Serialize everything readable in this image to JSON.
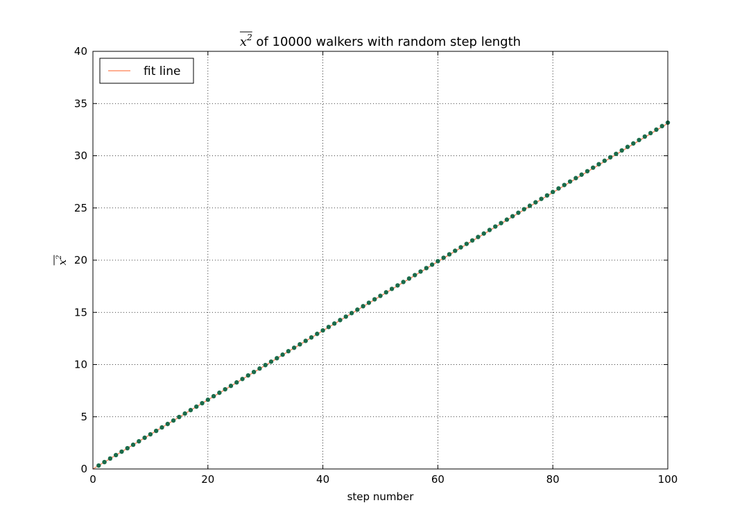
{
  "chart_data": {
    "type": "scatter",
    "title": {
      "math_base": "x",
      "math_exp": "2",
      "overline": true,
      "text": " of 10000 walkers with random step length"
    },
    "xlabel": "step number",
    "ylabel": {
      "math_base": "x",
      "math_exp": "2",
      "overline": true
    },
    "xlim": [
      0,
      100
    ],
    "ylim": [
      0,
      40
    ],
    "xticks": [
      0,
      20,
      40,
      60,
      80,
      100
    ],
    "yticks": [
      0,
      5,
      10,
      15,
      20,
      25,
      30,
      35,
      40
    ],
    "xtick_labels": [
      "0",
      "20",
      "40",
      "60",
      "80",
      "100"
    ],
    "ytick_labels": [
      "0",
      "5",
      "10",
      "15",
      "20",
      "25",
      "30",
      "35",
      "40"
    ],
    "grid": true,
    "legend_position": "top-left",
    "series": [
      {
        "name": "",
        "kind": "scatter",
        "color": "#1a6b4a",
        "x": [
          1,
          2,
          3,
          4,
          5,
          6,
          7,
          8,
          9,
          10,
          11,
          12,
          13,
          14,
          15,
          16,
          17,
          18,
          19,
          20,
          21,
          22,
          23,
          24,
          25,
          26,
          27,
          28,
          29,
          30,
          31,
          32,
          33,
          34,
          35,
          36,
          37,
          38,
          39,
          40,
          41,
          42,
          43,
          44,
          45,
          46,
          47,
          48,
          49,
          50,
          51,
          52,
          53,
          54,
          55,
          56,
          57,
          58,
          59,
          60,
          61,
          62,
          63,
          64,
          65,
          66,
          67,
          68,
          69,
          70,
          71,
          72,
          73,
          74,
          75,
          76,
          77,
          78,
          79,
          80,
          81,
          82,
          83,
          84,
          85,
          86,
          87,
          88,
          89,
          90,
          91,
          92,
          93,
          94,
          95,
          96,
          97,
          98,
          99,
          100
        ],
        "y": [
          0.33,
          0.66,
          1.0,
          1.33,
          1.66,
          1.99,
          2.32,
          2.65,
          2.99,
          3.32,
          3.65,
          3.98,
          4.31,
          4.64,
          4.98,
          5.31,
          5.64,
          5.97,
          6.3,
          6.63,
          6.97,
          7.3,
          7.63,
          7.96,
          8.29,
          8.62,
          8.96,
          9.29,
          9.62,
          9.95,
          10.28,
          10.61,
          10.95,
          11.28,
          11.61,
          11.94,
          12.27,
          12.6,
          12.94,
          13.27,
          13.6,
          13.93,
          14.26,
          14.59,
          14.93,
          15.26,
          15.59,
          15.92,
          16.25,
          16.58,
          16.92,
          17.25,
          17.58,
          17.91,
          18.24,
          18.57,
          18.91,
          19.24,
          19.57,
          19.9,
          20.23,
          20.56,
          20.9,
          21.23,
          21.56,
          21.89,
          22.22,
          22.55,
          22.89,
          23.22,
          23.55,
          23.88,
          24.21,
          24.54,
          24.88,
          25.21,
          25.54,
          25.87,
          26.2,
          26.53,
          26.87,
          27.2,
          27.53,
          27.86,
          28.19,
          28.52,
          28.86,
          29.19,
          29.52,
          29.85,
          30.18,
          30.51,
          30.85,
          31.18,
          31.51,
          31.84,
          32.17,
          32.5,
          32.84,
          33.17
        ]
      },
      {
        "name": "fit line",
        "kind": "line",
        "color": "#ff7f50",
        "x": [
          0,
          100
        ],
        "y": [
          0,
          33.1
        ]
      }
    ]
  }
}
